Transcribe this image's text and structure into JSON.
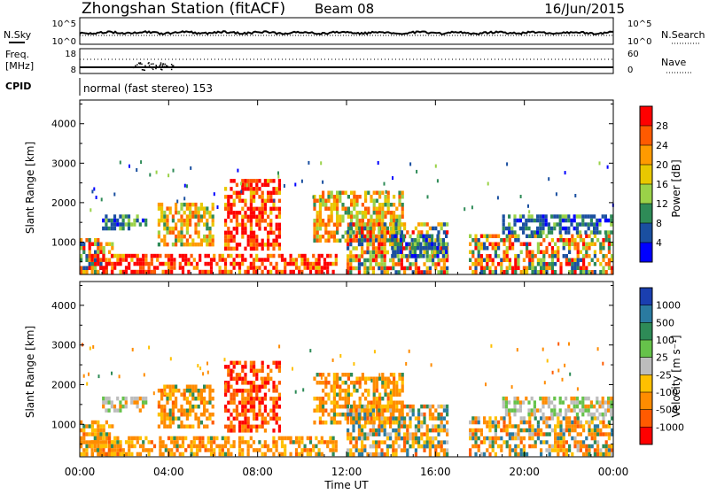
{
  "header": {
    "station": "Zhongshan Station (fitACF)",
    "beam": "Beam 08",
    "date": "16/Jun/2015"
  },
  "top_panels": {
    "nsky_label": "N.Sky",
    "nsky_ticks": [
      "10^5",
      "10^0"
    ],
    "nsearch_label": "N.Search",
    "nsearch_ticks": [
      "10^5",
      "10^0"
    ],
    "freq_label_1": "Freq.",
    "freq_label_2": "[MHz]",
    "freq_ticks": [
      "18",
      "8"
    ],
    "nave_label": "Nave",
    "nave_ticks": [
      "60",
      "0"
    ],
    "cpid_label": "CPID",
    "cpid_text": "normal (fast stereo) 153"
  },
  "chart_data": [
    {
      "type": "heatmap",
      "panel": "power",
      "ylabel": "Slant Range [km]",
      "ylim": [
        180,
        4600
      ],
      "yticks": [
        1000,
        2000,
        3000,
        4000
      ],
      "xlim_hours": [
        0,
        24
      ],
      "colorbar_label": "Power [dB]",
      "colorbar_ticks": [
        "28",
        "24",
        "20",
        "16",
        "12",
        "8",
        "4"
      ],
      "colorbar_colors": [
        "#ff0000",
        "#ff5a00",
        "#ff9a00",
        "#e8c800",
        "#9ad248",
        "#2e8b57",
        "#1a4fa0",
        "#0000ff"
      ],
      "echo_regions": [
        {
          "t0": 0.0,
          "t1": 1.5,
          "r0": 200,
          "r1": 1100,
          "level": "mixed"
        },
        {
          "t0": 1.0,
          "t1": 3.0,
          "r0": 1300,
          "r1": 1700,
          "level": "low"
        },
        {
          "t0": 3.5,
          "t1": 6.0,
          "r0": 900,
          "r1": 2000,
          "level": "mid"
        },
        {
          "t0": 6.5,
          "t1": 9.0,
          "r0": 800,
          "r1": 2600,
          "level": "high"
        },
        {
          "t0": 0.5,
          "t1": 11.5,
          "r0": 200,
          "r1": 700,
          "level": "high"
        },
        {
          "t0": 10.5,
          "t1": 14.5,
          "r0": 1000,
          "r1": 2300,
          "level": "mid"
        },
        {
          "t0": 12.0,
          "t1": 16.5,
          "r0": 200,
          "r1": 1500,
          "level": "mixed"
        },
        {
          "t0": 14.0,
          "t1": 16.5,
          "r0": 600,
          "r1": 1200,
          "level": "low"
        },
        {
          "t0": 17.5,
          "t1": 23.9,
          "r0": 200,
          "r1": 1200,
          "level": "mixed"
        },
        {
          "t0": 19.0,
          "t1": 23.9,
          "r0": 1200,
          "r1": 1700,
          "level": "low"
        }
      ]
    },
    {
      "type": "heatmap",
      "panel": "velocity",
      "ylabel": "Slant Range [km]",
      "ylim": [
        180,
        4600
      ],
      "yticks": [
        1000,
        2000,
        3000,
        4000
      ],
      "xlim_hours": [
        0,
        24
      ],
      "xticks": [
        "00:00",
        "04:00",
        "08:00",
        "12:00",
        "16:00",
        "20:00",
        "00:00"
      ],
      "xlabel": "Time UT",
      "colorbar_label": "Velocity [m s⁻¹]",
      "colorbar_ticks": [
        "1000",
        "500",
        "100",
        "25",
        "-25",
        "-100",
        "-500",
        "-1000"
      ],
      "colorbar_colors": [
        "#1a3fb0",
        "#2a7aa0",
        "#2e8b57",
        "#66c24a",
        "#bdbdbd",
        "#ffc000",
        "#ff8c00",
        "#ff5a00",
        "#ff0000"
      ],
      "echo_regions": [
        {
          "t0": 0.0,
          "t1": 1.5,
          "r0": 200,
          "r1": 1100,
          "level": "orange"
        },
        {
          "t0": 1.0,
          "t1": 3.0,
          "r0": 1300,
          "r1": 1700,
          "level": "gray"
        },
        {
          "t0": 3.5,
          "t1": 6.0,
          "r0": 900,
          "r1": 2000,
          "level": "orange"
        },
        {
          "t0": 6.5,
          "t1": 9.0,
          "r0": 800,
          "r1": 2600,
          "level": "red"
        },
        {
          "t0": 0.5,
          "t1": 11.5,
          "r0": 200,
          "r1": 700,
          "level": "orange"
        },
        {
          "t0": 10.5,
          "t1": 14.5,
          "r0": 1000,
          "r1": 2300,
          "level": "orange"
        },
        {
          "t0": 12.0,
          "t1": 16.5,
          "r0": 200,
          "r1": 1500,
          "level": "mixed"
        },
        {
          "t0": 17.5,
          "t1": 23.9,
          "r0": 200,
          "r1": 1200,
          "level": "mixed"
        },
        {
          "t0": 19.0,
          "t1": 23.9,
          "r0": 1200,
          "r1": 1700,
          "level": "gray"
        }
      ]
    }
  ]
}
